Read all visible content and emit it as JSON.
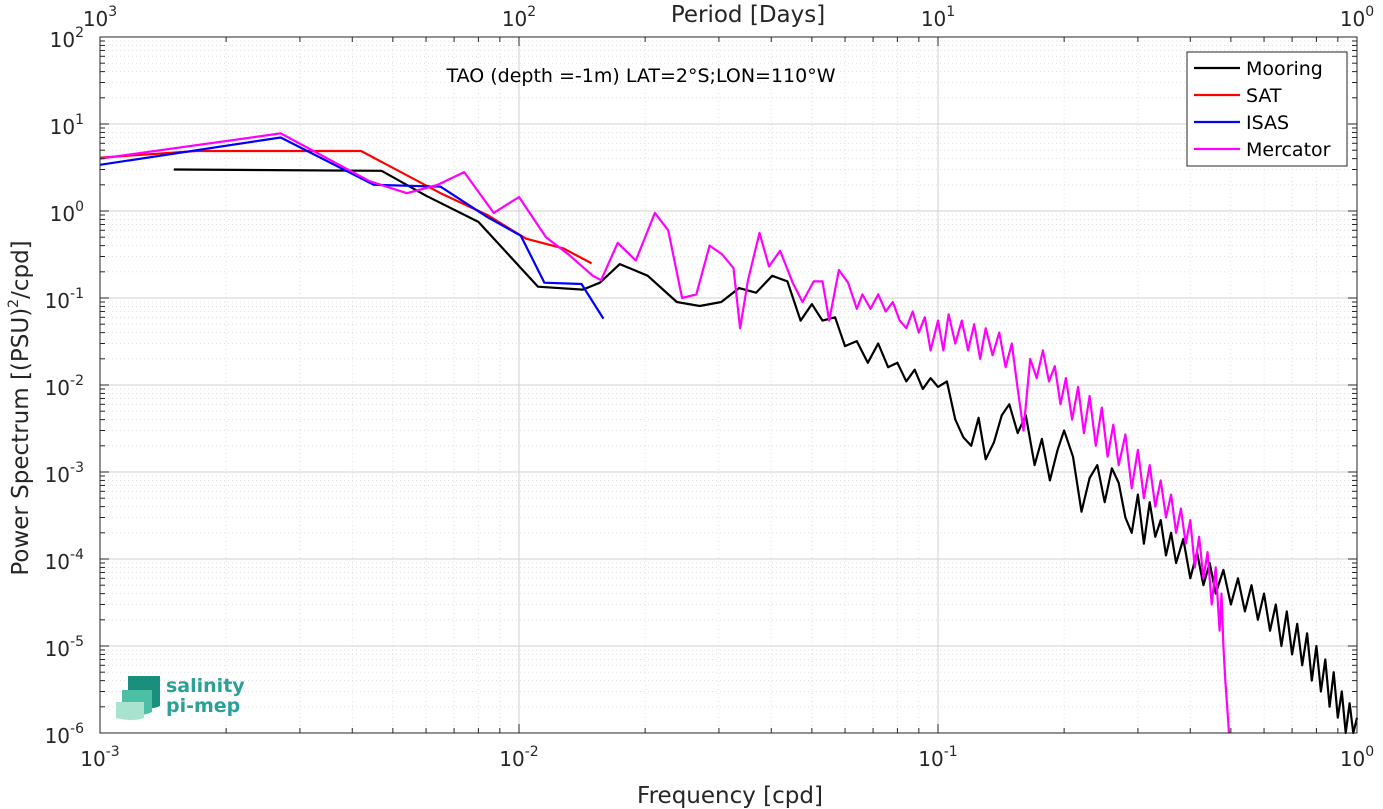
{
  "chart_data": {
    "type": "line",
    "title": "TAO (depth =-1m) LAT=2°S;LON=110°W",
    "xlabel": "Frequency [cpd]",
    "ylabel_main": "Power Spectrum [(PSU)",
    "ylabel_sup": "2",
    "ylabel_end": "/cpd]",
    "top_xlabel": "Period [Days]",
    "x_scale": "log",
    "y_scale": "log",
    "xlim": [
      0.001,
      1
    ],
    "ylim": [
      1e-06,
      100
    ],
    "grid": true,
    "minor_grid": true,
    "legend_position": "top-right",
    "x_ticks": [
      {
        "value": 0.001,
        "base": "10",
        "exp": "-3"
      },
      {
        "value": 0.01,
        "base": "10",
        "exp": "-2"
      },
      {
        "value": 0.1,
        "base": "10",
        "exp": "-1"
      },
      {
        "value": 1,
        "base": "10",
        "exp": "0"
      }
    ],
    "top_ticks": [
      {
        "value": 0.001,
        "base": "10",
        "exp": "3"
      },
      {
        "value": 0.01,
        "base": "10",
        "exp": "2"
      },
      {
        "value": 0.1,
        "base": "10",
        "exp": "1"
      },
      {
        "value": 1,
        "base": "10",
        "exp": "0"
      }
    ],
    "y_ticks": [
      {
        "value": 100,
        "base": "10",
        "exp": "2"
      },
      {
        "value": 10,
        "base": "10",
        "exp": "1"
      },
      {
        "value": 1,
        "base": "10",
        "exp": "0"
      },
      {
        "value": 0.1,
        "base": "10",
        "exp": "-1"
      },
      {
        "value": 0.01,
        "base": "10",
        "exp": "-2"
      },
      {
        "value": 0.001,
        "base": "10",
        "exp": "-3"
      },
      {
        "value": 0.0001,
        "base": "10",
        "exp": "-4"
      },
      {
        "value": 1e-05,
        "base": "10",
        "exp": "-5"
      },
      {
        "value": 1e-06,
        "base": "10",
        "exp": "-6"
      }
    ],
    "series": [
      {
        "name": "Mooring",
        "color": "#000000",
        "points": [
          [
            0.0015,
            3.0
          ],
          [
            0.0047,
            2.9
          ],
          [
            0.006,
            1.5
          ],
          [
            0.008,
            0.75
          ],
          [
            0.0111,
            0.135
          ],
          [
            0.0142,
            0.125
          ],
          [
            0.0156,
            0.15
          ],
          [
            0.0174,
            0.245
          ],
          [
            0.0203,
            0.18
          ],
          [
            0.0238,
            0.09
          ],
          [
            0.027,
            0.081
          ],
          [
            0.0304,
            0.09
          ],
          [
            0.0335,
            0.13
          ],
          [
            0.0368,
            0.115
          ],
          [
            0.0402,
            0.18
          ],
          [
            0.0437,
            0.155
          ],
          [
            0.047,
            0.055
          ],
          [
            0.05,
            0.085
          ],
          [
            0.053,
            0.055
          ],
          [
            0.0568,
            0.06
          ],
          [
            0.06,
            0.028
          ],
          [
            0.064,
            0.032
          ],
          [
            0.068,
            0.018
          ],
          [
            0.072,
            0.03
          ],
          [
            0.076,
            0.016
          ],
          [
            0.08,
            0.018
          ],
          [
            0.084,
            0.011
          ],
          [
            0.088,
            0.015
          ],
          [
            0.092,
            0.009
          ],
          [
            0.096,
            0.012
          ],
          [
            0.1,
            0.0095
          ],
          [
            0.105,
            0.011
          ],
          [
            0.11,
            0.004
          ],
          [
            0.115,
            0.0025
          ],
          [
            0.12,
            0.002
          ],
          [
            0.125,
            0.0042
          ],
          [
            0.13,
            0.0014
          ],
          [
            0.136,
            0.0022
          ],
          [
            0.142,
            0.0045
          ],
          [
            0.148,
            0.006
          ],
          [
            0.155,
            0.0028
          ],
          [
            0.162,
            0.0045
          ],
          [
            0.17,
            0.0012
          ],
          [
            0.177,
            0.0024
          ],
          [
            0.185,
            0.0008
          ],
          [
            0.193,
            0.0018
          ],
          [
            0.2,
            0.003
          ],
          [
            0.21,
            0.0015
          ],
          [
            0.22,
            0.00035
          ],
          [
            0.23,
            0.00085
          ],
          [
            0.24,
            0.0012
          ],
          [
            0.25,
            0.00045
          ],
          [
            0.26,
            0.0011
          ],
          [
            0.27,
            0.00075
          ],
          [
            0.28,
            0.0003
          ],
          [
            0.29,
            0.0002
          ],
          [
            0.3,
            0.00055
          ],
          [
            0.31,
            0.00015
          ],
          [
            0.32,
            0.00045
          ],
          [
            0.33,
            0.00018
          ],
          [
            0.34,
            0.00028
          ],
          [
            0.35,
            0.00011
          ],
          [
            0.36,
            0.0002
          ],
          [
            0.37,
            9e-05
          ],
          [
            0.385,
            0.00017
          ],
          [
            0.4,
            6e-05
          ],
          [
            0.415,
            0.00012
          ],
          [
            0.43,
            5e-05
          ],
          [
            0.445,
            9e-05
          ],
          [
            0.46,
            4e-05
          ],
          [
            0.48,
            7.5e-05
          ],
          [
            0.5,
            3e-05
          ],
          [
            0.52,
            6e-05
          ],
          [
            0.54,
            2.5e-05
          ],
          [
            0.56,
            5e-05
          ],
          [
            0.58,
            2e-05
          ],
          [
            0.6,
            4e-05
          ],
          [
            0.62,
            1.5e-05
          ],
          [
            0.64,
            3e-05
          ],
          [
            0.66,
            1e-05
          ],
          [
            0.68,
            2.5e-05
          ],
          [
            0.7,
            8e-06
          ],
          [
            0.72,
            1.8e-05
          ],
          [
            0.74,
            6e-06
          ],
          [
            0.76,
            1.4e-05
          ],
          [
            0.78,
            4e-06
          ],
          [
            0.8,
            1e-05
          ],
          [
            0.82,
            3e-06
          ],
          [
            0.84,
            7e-06
          ],
          [
            0.86,
            2e-06
          ],
          [
            0.88,
            5e-06
          ],
          [
            0.9,
            1.5e-06
          ],
          [
            0.92,
            3e-06
          ],
          [
            0.94,
            1e-06
          ],
          [
            0.96,
            2.2e-06
          ],
          [
            0.98,
            1e-06
          ],
          [
            1.0,
            1.5e-06
          ]
        ]
      },
      {
        "name": "SAT",
        "color": "#ff0000",
        "points": [
          [
            0.001,
            4.1
          ],
          [
            0.0017,
            4.9
          ],
          [
            0.0042,
            4.9
          ],
          [
            0.0065,
            1.6
          ],
          [
            0.0084,
            0.9
          ],
          [
            0.0104,
            0.48
          ],
          [
            0.0128,
            0.37
          ],
          [
            0.0149,
            0.25
          ]
        ]
      },
      {
        "name": "ISAS",
        "color": "#0000ff",
        "points": [
          [
            0.001,
            3.4
          ],
          [
            0.0027,
            7.0
          ],
          [
            0.0045,
            2.0
          ],
          [
            0.0065,
            1.9
          ],
          [
            0.0084,
            0.85
          ],
          [
            0.0101,
            0.52
          ],
          [
            0.0115,
            0.15
          ],
          [
            0.0141,
            0.145
          ],
          [
            0.0159,
            0.058
          ]
        ]
      },
      {
        "name": "Mercator",
        "color": "#ff00ff",
        "points": [
          [
            0.001,
            4.0
          ],
          [
            0.0027,
            7.8
          ],
          [
            0.0044,
            2.2
          ],
          [
            0.0054,
            1.6
          ],
          [
            0.0064,
            2.0
          ],
          [
            0.0074,
            2.8
          ],
          [
            0.0087,
            0.95
          ],
          [
            0.01,
            1.45
          ],
          [
            0.0116,
            0.5
          ],
          [
            0.0131,
            0.32
          ],
          [
            0.015,
            0.18
          ],
          [
            0.0157,
            0.16
          ],
          [
            0.0172,
            0.43
          ],
          [
            0.019,
            0.27
          ],
          [
            0.0211,
            0.95
          ],
          [
            0.0227,
            0.6
          ],
          [
            0.0245,
            0.1
          ],
          [
            0.0265,
            0.11
          ],
          [
            0.0285,
            0.4
          ],
          [
            0.0305,
            0.32
          ],
          [
            0.0325,
            0.22
          ],
          [
            0.0337,
            0.045
          ],
          [
            0.0352,
            0.16
          ],
          [
            0.0375,
            0.56
          ],
          [
            0.0395,
            0.23
          ],
          [
            0.042,
            0.35
          ],
          [
            0.045,
            0.15
          ],
          [
            0.0475,
            0.09
          ],
          [
            0.0505,
            0.155
          ],
          [
            0.053,
            0.155
          ],
          [
            0.055,
            0.055
          ],
          [
            0.058,
            0.21
          ],
          [
            0.061,
            0.15
          ],
          [
            0.064,
            0.075
          ],
          [
            0.066,
            0.11
          ],
          [
            0.069,
            0.075
          ],
          [
            0.072,
            0.11
          ],
          [
            0.075,
            0.07
          ],
          [
            0.078,
            0.09
          ],
          [
            0.081,
            0.055
          ],
          [
            0.084,
            0.045
          ],
          [
            0.087,
            0.07
          ],
          [
            0.09,
            0.04
          ],
          [
            0.093,
            0.06
          ],
          [
            0.096,
            0.025
          ],
          [
            0.1,
            0.055
          ],
          [
            0.103,
            0.025
          ],
          [
            0.106,
            0.065
          ],
          [
            0.11,
            0.03
          ],
          [
            0.114,
            0.055
          ],
          [
            0.118,
            0.025
          ],
          [
            0.122,
            0.05
          ],
          [
            0.126,
            0.02
          ],
          [
            0.13,
            0.045
          ],
          [
            0.135,
            0.022
          ],
          [
            0.14,
            0.04
          ],
          [
            0.145,
            0.016
          ],
          [
            0.15,
            0.03
          ],
          [
            0.155,
            0.009
          ],
          [
            0.16,
            0.003
          ],
          [
            0.166,
            0.02
          ],
          [
            0.172,
            0.012
          ],
          [
            0.178,
            0.025
          ],
          [
            0.184,
            0.011
          ],
          [
            0.19,
            0.0165
          ],
          [
            0.196,
            0.006
          ],
          [
            0.202,
            0.012
          ],
          [
            0.209,
            0.004
          ],
          [
            0.216,
            0.0095
          ],
          [
            0.223,
            0.0028
          ],
          [
            0.23,
            0.0075
          ],
          [
            0.238,
            0.002
          ],
          [
            0.246,
            0.0055
          ],
          [
            0.254,
            0.0015
          ],
          [
            0.262,
            0.0035
          ],
          [
            0.27,
            0.0012
          ],
          [
            0.28,
            0.0027
          ],
          [
            0.29,
            0.00065
          ],
          [
            0.3,
            0.0018
          ],
          [
            0.31,
            0.0005
          ],
          [
            0.32,
            0.0012
          ],
          [
            0.33,
            0.0004
          ],
          [
            0.34,
            0.0008
          ],
          [
            0.35,
            0.0003
          ],
          [
            0.36,
            0.00055
          ],
          [
            0.37,
            0.0002
          ],
          [
            0.38,
            0.00038
          ],
          [
            0.39,
            0.00015
          ],
          [
            0.4,
            0.00028
          ],
          [
            0.41,
            8e-05
          ],
          [
            0.42,
            0.00018
          ],
          [
            0.43,
            6e-05
          ],
          [
            0.44,
            0.00012
          ],
          [
            0.45,
            3e-05
          ],
          [
            0.46,
            8e-05
          ],
          [
            0.47,
            1.5e-05
          ],
          [
            0.475,
            4e-05
          ],
          [
            0.48,
            1e-05
          ],
          [
            0.485,
            4e-06
          ],
          [
            0.49,
            2e-06
          ],
          [
            0.495,
            1e-06
          ]
        ]
      }
    ]
  },
  "logo": {
    "line1": "salinity",
    "line2": "pi-mep"
  }
}
